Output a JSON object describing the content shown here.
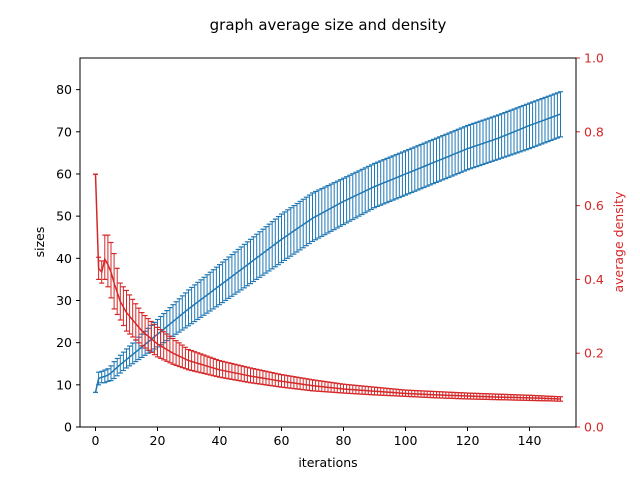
{
  "chart_data": {
    "type": "line",
    "title": "graph average size and density",
    "xlabel": "iterations",
    "ylabel_left": "sizes",
    "ylabel_right": "average density",
    "xlim": [
      -5,
      155
    ],
    "ylim_left": [
      0,
      87.5
    ],
    "ylim_right": [
      0,
      1.0
    ],
    "x_ticks": [
      0,
      20,
      40,
      60,
      80,
      100,
      120,
      140
    ],
    "y_ticks_left": [
      0,
      10,
      20,
      30,
      40,
      50,
      60,
      70,
      80
    ],
    "y_ticks_right": [
      0.0,
      0.2,
      0.4,
      0.6,
      0.8,
      1.0
    ],
    "grid": false,
    "colors": {
      "sizes": "#1f77b4",
      "density": "#d62728"
    },
    "series": [
      {
        "name": "sizes",
        "axis": "left",
        "x": [
          0,
          1,
          2,
          3,
          4,
          5,
          6,
          8,
          10,
          15,
          20,
          25,
          30,
          40,
          50,
          60,
          70,
          80,
          90,
          100,
          110,
          120,
          130,
          140,
          150
        ],
        "mean": [
          8.2,
          11.5,
          11.8,
          12.0,
          12.3,
          12.8,
          13.5,
          14.8,
          16.0,
          19.0,
          22.0,
          25.0,
          28.0,
          33.5,
          39.0,
          44.5,
          49.5,
          53.5,
          57.0,
          60.0,
          63.0,
          66.0,
          68.5,
          71.5,
          74.2
        ],
        "lower": [
          8.2,
          10.0,
          10.5,
          10.5,
          10.8,
          11.0,
          11.5,
          12.8,
          14.0,
          16.5,
          19.0,
          21.5,
          24.0,
          29.0,
          34.0,
          39.0,
          44.0,
          48.0,
          52.0,
          55.0,
          58.0,
          61.0,
          63.5,
          66.0,
          68.8
        ],
        "upper": [
          8.2,
          13.0,
          13.2,
          13.5,
          13.8,
          14.5,
          15.5,
          17.0,
          18.5,
          22.0,
          25.5,
          29.0,
          32.5,
          38.5,
          44.5,
          50.5,
          55.5,
          59.0,
          62.5,
          65.5,
          68.5,
          71.5,
          74.0,
          76.8,
          79.5
        ]
      },
      {
        "name": "average density",
        "axis": "right",
        "x": [
          0,
          1,
          2,
          3,
          4,
          5,
          6,
          8,
          10,
          15,
          20,
          25,
          30,
          40,
          50,
          60,
          70,
          80,
          90,
          100,
          110,
          120,
          130,
          140,
          150
        ],
        "mean": [
          0.685,
          0.43,
          0.42,
          0.455,
          0.44,
          0.42,
          0.39,
          0.34,
          0.31,
          0.26,
          0.225,
          0.2,
          0.18,
          0.155,
          0.138,
          0.124,
          0.112,
          0.103,
          0.097,
          0.091,
          0.087,
          0.084,
          0.081,
          0.079,
          0.076
        ],
        "lower": [
          0.685,
          0.4,
          0.39,
          0.4,
          0.38,
          0.35,
          0.32,
          0.29,
          0.26,
          0.22,
          0.19,
          0.17,
          0.155,
          0.135,
          0.12,
          0.108,
          0.098,
          0.092,
          0.087,
          0.083,
          0.079,
          0.076,
          0.074,
          0.072,
          0.07
        ],
        "upper": [
          0.685,
          0.46,
          0.45,
          0.52,
          0.52,
          0.5,
          0.47,
          0.39,
          0.37,
          0.31,
          0.27,
          0.24,
          0.21,
          0.18,
          0.16,
          0.142,
          0.128,
          0.116,
          0.108,
          0.1,
          0.096,
          0.092,
          0.089,
          0.086,
          0.082
        ]
      }
    ]
  }
}
